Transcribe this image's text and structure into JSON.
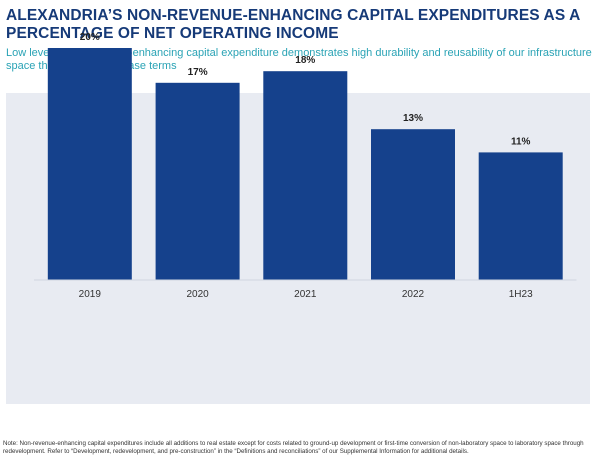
{
  "header": {
    "title": "ALEXANDRIA’S NON-REVENUE-ENHANCING CAPITAL EXPENDITURES AS A PERCENTAGE OF NET OPERATING INCOME",
    "subtitle": "Low level of non-revenue-enhancing capital expenditure demonstrates high durability and reusability of our infrastructure space through multiple lease terms"
  },
  "footnote": "Note:  Non-revenue-enhancing capital expenditures include all additions to real estate except for costs related to ground-up development or first-time conversion of non-laboratory space to laboratory space through redevelopment. Refer to “Development, redevelopment, and pre-construction” in the “Definitions and reconciliations” of our Supplemental Information for additional details.",
  "colors": {
    "bar": "#15418c",
    "panel": "#e8ebf2",
    "title": "#163a78",
    "subtitle": "#2aa3b5"
  },
  "chart_data": {
    "type": "bar",
    "title": "",
    "xlabel": "",
    "ylabel": "",
    "categories": [
      "2019",
      "2020",
      "2021",
      "2022",
      "1H23"
    ],
    "values": [
      20,
      17,
      18,
      13,
      11
    ],
    "data_labels": [
      "20%",
      "17%",
      "18%",
      "13%",
      "11%"
    ],
    "ylim": [
      0,
      25
    ],
    "grid": false,
    "legend": "none"
  }
}
